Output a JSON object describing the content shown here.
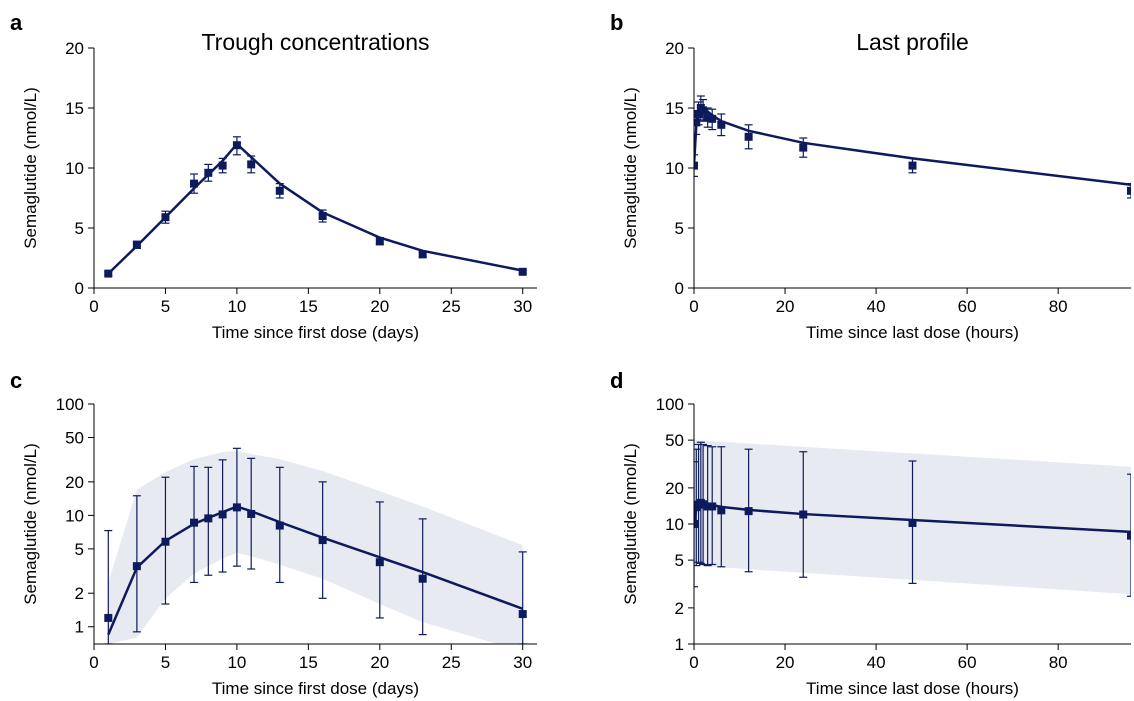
{
  "style": {
    "series_color": "#0d1b5e",
    "band_color": "#e8eaf2"
  },
  "chart_data": [
    {
      "panel": "a",
      "title": "Trough concentrations",
      "type": "line",
      "xlabel": "Time since first dose (days)",
      "ylabel": "Semaglutide (nmol/L)",
      "xlim": [
        0,
        31
      ],
      "ylim": [
        0,
        20
      ],
      "yscale": "linear",
      "xticks": [
        0,
        5,
        10,
        15,
        20,
        25,
        30
      ],
      "yticks": [
        0,
        5,
        10,
        15,
        20
      ],
      "series": [
        {
          "type": "scatter",
          "x": [
            1,
            3,
            5,
            7,
            8,
            9,
            10,
            11,
            13,
            16,
            20,
            23,
            30
          ],
          "y": [
            1.2,
            3.6,
            5.9,
            8.7,
            9.6,
            10.2,
            11.9,
            10.3,
            8.1,
            6.0,
            3.9,
            2.8,
            1.35
          ],
          "err_low": [
            1.05,
            3.3,
            5.4,
            7.9,
            8.9,
            9.6,
            11.1,
            9.6,
            7.5,
            5.5,
            3.6,
            2.6,
            1.2
          ],
          "err_high": [
            1.35,
            3.9,
            6.4,
            9.5,
            10.3,
            10.8,
            12.6,
            11.0,
            8.7,
            6.5,
            4.2,
            3.0,
            1.5
          ]
        },
        {
          "type": "line",
          "x": [
            1,
            3,
            5,
            7,
            9,
            10,
            11,
            13,
            16,
            20,
            23,
            30
          ],
          "y": [
            1.2,
            3.5,
            5.9,
            8.3,
            10.6,
            12.0,
            10.9,
            8.7,
            6.3,
            4.2,
            3.1,
            1.45
          ]
        }
      ]
    },
    {
      "panel": "b",
      "title": "Last profile",
      "type": "line",
      "xlabel": "Time since last dose (hours)",
      "ylabel": "Semaglutide (nmol/L)",
      "xlim": [
        0,
        96
      ],
      "ylim": [
        0,
        20
      ],
      "yscale": "linear",
      "xticks": [
        0,
        20,
        40,
        60,
        80
      ],
      "yticks": [
        0,
        5,
        10,
        15,
        20
      ],
      "series": [
        {
          "type": "scatter",
          "x": [
            0,
            0.5,
            1,
            1.5,
            2,
            3,
            4,
            6,
            12,
            24,
            48,
            96
          ],
          "y": [
            10.2,
            13.8,
            14.5,
            15.0,
            14.8,
            14.2,
            14.1,
            13.6,
            12.6,
            11.7,
            10.2,
            8.1
          ],
          "err_low": [
            9.3,
            12.8,
            13.6,
            14.0,
            13.9,
            13.4,
            13.2,
            12.7,
            11.6,
            10.9,
            9.6,
            7.5
          ],
          "err_high": [
            11.1,
            14.7,
            15.5,
            16.0,
            15.7,
            15.0,
            14.9,
            14.5,
            13.6,
            12.5,
            10.8,
            8.7
          ]
        },
        {
          "type": "line",
          "x": [
            0,
            0.5,
            1,
            2,
            3,
            4,
            6,
            12,
            24,
            48,
            96
          ],
          "y": [
            10.2,
            13.5,
            15.0,
            15.0,
            14.7,
            14.4,
            13.9,
            13.1,
            12.1,
            10.8,
            8.6
          ]
        }
      ]
    },
    {
      "panel": "c",
      "type": "line",
      "xlabel": "Time since first dose (days)",
      "ylabel": "Semaglutide (nmol/L)",
      "xlim": [
        0,
        31
      ],
      "ylim": [
        0.7,
        100
      ],
      "yscale": "log",
      "xticks": [
        0,
        5,
        10,
        15,
        20,
        25,
        30
      ],
      "yticks": [
        1,
        2,
        5,
        10,
        20,
        50,
        100
      ],
      "series": [
        {
          "type": "band",
          "x": [
            1,
            3,
            5,
            7,
            9,
            10,
            11,
            13,
            16,
            20,
            23,
            30
          ],
          "low": [
            0.7,
            0.8,
            1.8,
            3.0,
            4.1,
            4.6,
            4.3,
            3.6,
            2.7,
            1.6,
            1.1,
            0.6
          ],
          "high": [
            2.5,
            17.0,
            24.5,
            32.0,
            37.0,
            38.0,
            35.5,
            32.0,
            25.0,
            16.5,
            12.0,
            5.4
          ]
        },
        {
          "type": "scatter",
          "x": [
            1,
            3,
            5,
            7,
            8,
            9,
            10,
            11,
            13,
            16,
            20,
            23,
            30
          ],
          "y": [
            1.2,
            3.5,
            5.8,
            8.6,
            9.4,
            10.2,
            11.8,
            10.3,
            8.1,
            6.0,
            3.8,
            2.7,
            1.3
          ],
          "err_low": [
            0.7,
            0.9,
            1.6,
            2.5,
            2.9,
            3.1,
            3.5,
            3.3,
            2.5,
            1.8,
            1.2,
            0.85,
            0.7
          ],
          "err_high": [
            7.3,
            15.0,
            22.0,
            27.5,
            27.0,
            31.5,
            40.0,
            32.5,
            27.0,
            20.0,
            13.2,
            9.3,
            4.7
          ]
        },
        {
          "type": "line",
          "x": [
            1,
            3,
            5,
            7,
            9,
            10,
            11,
            13,
            16,
            20,
            23,
            30
          ],
          "y": [
            0.85,
            3.4,
            5.9,
            8.4,
            10.7,
            12.0,
            10.9,
            8.7,
            6.3,
            4.2,
            3.1,
            1.45
          ]
        }
      ]
    },
    {
      "panel": "d",
      "type": "line",
      "xlabel": "Time since last dose (hours)",
      "ylabel": "Semaglutide (nmol/L)",
      "xlim": [
        0,
        96
      ],
      "ylim": [
        1,
        100
      ],
      "yscale": "log",
      "xticks": [
        0,
        20,
        40,
        60,
        80
      ],
      "yticks": [
        1,
        2,
        5,
        10,
        20,
        50,
        100
      ],
      "series": [
        {
          "type": "band",
          "x": [
            0,
            96
          ],
          "low": [
            4.5,
            2.6
          ],
          "high": [
            50,
            30
          ]
        },
        {
          "type": "scatter",
          "x": [
            0,
            0.5,
            1,
            1.5,
            2,
            3,
            4,
            6,
            12,
            24,
            48,
            96
          ],
          "y": [
            10.0,
            13.8,
            14.5,
            15.0,
            14.6,
            14.0,
            14.0,
            13.0,
            12.8,
            12.0,
            10.2,
            8.0
          ],
          "err_low": [
            3.0,
            4.5,
            4.8,
            4.7,
            4.6,
            4.5,
            4.6,
            4.4,
            4.0,
            3.6,
            3.2,
            2.5
          ],
          "err_high": [
            33.0,
            42.0,
            46.0,
            48.0,
            46.0,
            45.0,
            44.0,
            44.0,
            42.0,
            40.0,
            33.5,
            26.0
          ]
        },
        {
          "type": "line",
          "x": [
            0,
            0.5,
            1,
            2,
            3,
            4,
            6,
            12,
            24,
            48,
            96
          ],
          "y": [
            10.0,
            13.5,
            15.0,
            15.0,
            14.7,
            14.4,
            13.9,
            13.1,
            12.1,
            10.8,
            8.6
          ]
        }
      ]
    }
  ]
}
